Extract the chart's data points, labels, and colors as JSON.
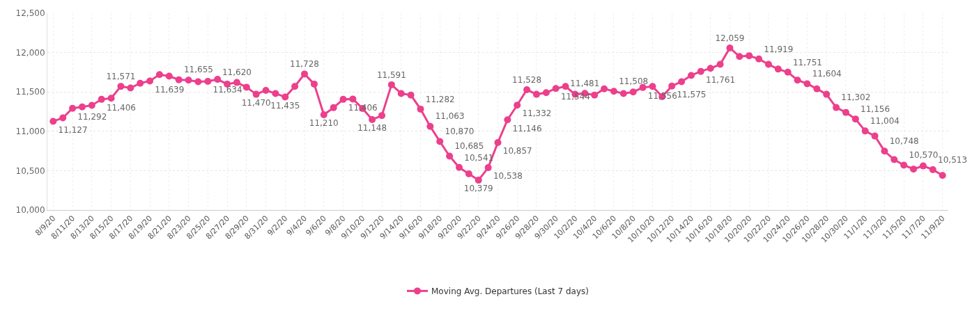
{
  "chart_data": {
    "type": "line",
    "categories": [
      "8/9/20",
      null,
      "8/11/20",
      null,
      "8/13/20",
      null,
      "8/15/20",
      null,
      "8/17/20",
      null,
      "8/19/20",
      null,
      "8/21/20",
      null,
      "8/23/20",
      null,
      "8/25/20",
      null,
      "8/27/20",
      null,
      "8/29/20",
      null,
      "8/31/20",
      null,
      "9/2/20",
      null,
      "9/4/20",
      null,
      "9/6/20",
      null,
      "9/8/20",
      null,
      "9/10/20",
      null,
      "9/12/20",
      null,
      "9/14/20",
      null,
      "9/16/20",
      null,
      "9/18/20",
      null,
      "9/20/20",
      null,
      "9/22/20",
      null,
      "9/24/20",
      null,
      "9/26/20",
      null,
      "9/28/20",
      null,
      "9/30/20",
      null,
      "10/2/20",
      null,
      "10/4/20",
      null,
      "10/6/20",
      null,
      "10/8/20",
      null,
      "10/10/20",
      null,
      "10/12/20",
      null,
      "10/14/20",
      null,
      "10/16/20",
      null,
      "10/18/20",
      null,
      "10/20/20",
      null,
      "10/22/20",
      null,
      "10/24/20",
      null,
      "10/26/20",
      null,
      "10/28/20",
      null,
      "10/30/20",
      null,
      "11/1/20",
      null,
      "11/3/20",
      null,
      "11/5/20",
      null,
      "11/7/20",
      null,
      "11/9/20"
    ],
    "series": [
      {
        "name": "Moving Avg. Departures (Last 7 days)",
        "color": "#ec3f8c",
        "values": [
          11127,
          11170,
          11292,
          11310,
          11330,
          11406,
          11420,
          11571,
          11550,
          11610,
          11639,
          11720,
          11700,
          11655,
          11650,
          11630,
          11634,
          11660,
          11600,
          11620,
          11560,
          11470,
          11520,
          11480,
          11435,
          11570,
          11728,
          11600,
          11210,
          11300,
          11406,
          11410,
          11290,
          11148,
          11200,
          11591,
          11480,
          11460,
          11282,
          11063,
          10870,
          10685,
          10541,
          10460,
          10379,
          10538,
          10857,
          11146,
          11332,
          11528,
          11470,
          11490,
          11544,
          11570,
          11470,
          11481,
          11460,
          11540,
          11508,
          11480,
          11500,
          11556,
          11570,
          11440,
          11575,
          11630,
          11710,
          11761,
          11800,
          11850,
          12059,
          11950,
          11960,
          11919,
          11850,
          11790,
          11751,
          11650,
          11604,
          11540,
          11470,
          11302,
          11240,
          11156,
          11004,
          10940,
          10748,
          10640,
          10570,
          10520,
          10560,
          10513,
          10440
        ],
        "value_labels": [
          "11,127",
          null,
          "11,292",
          null,
          null,
          "11,406",
          null,
          "11,571",
          null,
          null,
          "11,639",
          null,
          null,
          "11,655",
          null,
          null,
          "11,634",
          null,
          null,
          "11,620",
          null,
          "11,470",
          null,
          null,
          "11,435",
          null,
          "11,728",
          null,
          "11,210",
          null,
          "11,406",
          null,
          null,
          "11,148",
          null,
          "11,591",
          null,
          null,
          "11,282",
          "11,063",
          "10,870",
          "10,685",
          "10,541",
          null,
          "10,379",
          "10,538",
          "10,857",
          "11,146",
          "11,332",
          "11,528",
          null,
          null,
          "11,544",
          null,
          null,
          "11,481",
          null,
          null,
          "11,508",
          null,
          null,
          "11,556",
          null,
          null,
          "11,575",
          null,
          null,
          "11,761",
          null,
          null,
          "12,059",
          null,
          null,
          "11,919",
          null,
          null,
          "11,751",
          null,
          "11,604",
          null,
          null,
          "11,302",
          null,
          "11,156",
          "11,004",
          null,
          "10,748",
          null,
          "10,570",
          null,
          null,
          "10,513",
          null
        ]
      }
    ],
    "ylim": [
      10000,
      12500
    ],
    "yticks": [
      {
        "value": 10000,
        "label": "10,000"
      },
      {
        "value": 10500,
        "label": "10,500"
      },
      {
        "value": 11000,
        "label": "11,000"
      },
      {
        "value": 11500,
        "label": "11,500"
      },
      {
        "value": 12000,
        "label": "12,000"
      },
      {
        "value": 12500,
        "label": "12,500"
      }
    ],
    "grid": true,
    "legend": "bottom",
    "marker": "circle",
    "line_style": "solid"
  }
}
